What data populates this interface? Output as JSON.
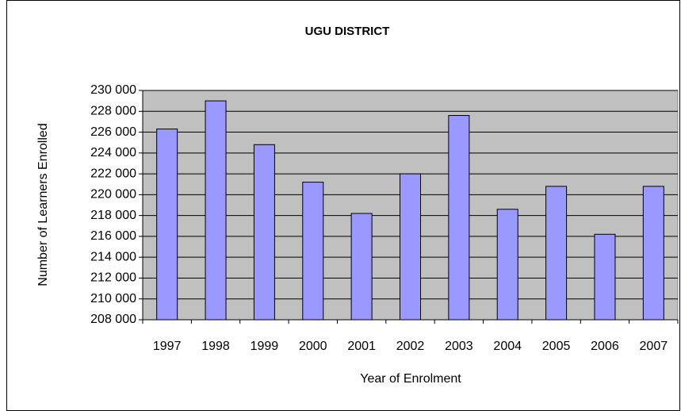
{
  "chart_data": {
    "type": "bar",
    "title": "UGU DISTRICT",
    "x_label": "Year of Enrolment",
    "y_label": "Number of Learners Enrolled",
    "categories": [
      "1997",
      "1998",
      "1999",
      "2000",
      "2001",
      "2002",
      "2003",
      "2004",
      "2005",
      "2006",
      "2007"
    ],
    "values": [
      226300,
      229000,
      224800,
      221200,
      218200,
      222000,
      227600,
      218600,
      220800,
      216200,
      220800
    ],
    "color": "#9999ff",
    "ylim": [
      208000,
      230000
    ],
    "yticks": [
      {
        "value": 208000,
        "label": "208 000"
      },
      {
        "value": 210000,
        "label": "210 000"
      },
      {
        "value": 212000,
        "label": "212 000"
      },
      {
        "value": 214000,
        "label": "214 000"
      },
      {
        "value": 216000,
        "label": "216 000"
      },
      {
        "value": 218000,
        "label": "218 000"
      },
      {
        "value": 220000,
        "label": "220 000"
      },
      {
        "value": 222000,
        "label": "222 000"
      },
      {
        "value": 224000,
        "label": "224 000"
      },
      {
        "value": 226000,
        "label": "226 000"
      },
      {
        "value": 228000,
        "label": "228 000"
      },
      {
        "value": 230000,
        "label": "230 000"
      }
    ],
    "grid": true
  }
}
